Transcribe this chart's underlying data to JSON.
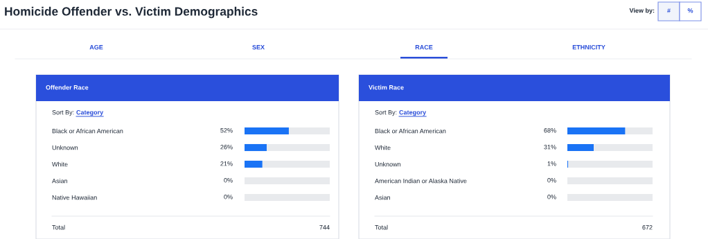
{
  "chart_data": [
    {
      "type": "other",
      "title": "Homicide Offender vs. Victim Demographics",
      "annotations": [
        "View by:",
        "#",
        "%",
        "AGE",
        "SEX",
        "RACE",
        "ETHNICITY"
      ]
    },
    {
      "type": "bar",
      "orientation": "horizontal",
      "stacked": true,
      "title": "Offender Race",
      "categories": [
        "Black or African American",
        "Unknown",
        "White",
        "Asian",
        "Native Hawaiian"
      ],
      "series": [
        {
          "color": "#1a73f5",
          "values": [
            52,
            26,
            21,
            0,
            0
          ],
          "value_labels": [
            "52%",
            "26%",
            "21%",
            "0%",
            "0%"
          ]
        },
        {
          "color": "#e8eaed",
          "values": [
            48,
            74,
            79,
            100,
            100
          ]
        }
      ],
      "xlim": [
        0,
        100
      ],
      "tick_labels": "y",
      "annotations": [
        "Sort By:",
        "Category",
        "Total",
        "744"
      ]
    },
    {
      "type": "bar",
      "orientation": "horizontal",
      "stacked": true,
      "title": "Victim Race",
      "categories": [
        "Black or African American",
        "White",
        "Unknown",
        "American Indian or Alaska Native",
        "Asian"
      ],
      "series": [
        {
          "color": "#1a73f5",
          "values": [
            68,
            31,
            1,
            0,
            0
          ],
          "value_labels": [
            "68%",
            "31%",
            "1%",
            "0%",
            "0%"
          ]
        },
        {
          "color": "#e8eaed",
          "values": [
            32,
            69,
            99,
            100,
            100
          ]
        }
      ],
      "xlim": [
        0,
        100
      ],
      "tick_labels": "y",
      "annotations": [
        "Sort By:",
        "Category",
        "Total",
        "672"
      ]
    }
  ]
}
